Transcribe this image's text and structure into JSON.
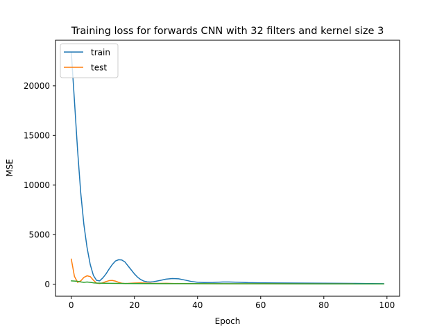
{
  "chart_data": {
    "type": "line",
    "title": "Training loss for forwards CNN with 32 filters and kernel size 3",
    "xlabel": "Epoch",
    "ylabel": "MSE",
    "xlim": [
      -5,
      104
    ],
    "ylim": [
      -1200,
      24600
    ],
    "xticks": [
      0,
      20,
      40,
      60,
      80,
      100
    ],
    "yticks": [
      0,
      5000,
      10000,
      15000,
      20000
    ],
    "grid": false,
    "legend": {
      "placement": "upper-left",
      "entries": [
        "train",
        "test"
      ]
    },
    "series": [
      {
        "name": "train",
        "color": "#1f77b4",
        "points": [
          [
            0,
            23400
          ],
          [
            1,
            18500
          ],
          [
            2,
            13500
          ],
          [
            3,
            9200
          ],
          [
            4,
            6000
          ],
          [
            5,
            3700
          ],
          [
            6,
            2000
          ],
          [
            7,
            900
          ],
          [
            8,
            400
          ],
          [
            9,
            350
          ],
          [
            10,
            650
          ],
          [
            11,
            1050
          ],
          [
            12,
            1550
          ],
          [
            13,
            2000
          ],
          [
            14,
            2350
          ],
          [
            15,
            2480
          ],
          [
            16,
            2450
          ],
          [
            17,
            2250
          ],
          [
            18,
            1850
          ],
          [
            19,
            1450
          ],
          [
            20,
            1050
          ],
          [
            21,
            720
          ],
          [
            22,
            480
          ],
          [
            23,
            320
          ],
          [
            24,
            250
          ],
          [
            25,
            230
          ],
          [
            26,
            260
          ],
          [
            28,
            380
          ],
          [
            30,
            520
          ],
          [
            32,
            580
          ],
          [
            34,
            560
          ],
          [
            36,
            430
          ],
          [
            38,
            290
          ],
          [
            40,
            210
          ],
          [
            42,
            180
          ],
          [
            45,
            190
          ],
          [
            48,
            230
          ],
          [
            50,
            235
          ],
          [
            53,
            210
          ],
          [
            56,
            170
          ],
          [
            60,
            145
          ],
          [
            65,
            140
          ],
          [
            70,
            130
          ],
          [
            75,
            120
          ],
          [
            80,
            110
          ],
          [
            85,
            100
          ],
          [
            90,
            90
          ],
          [
            95,
            80
          ],
          [
            99,
            70
          ]
        ]
      },
      {
        "name": "test",
        "color": "#ff7f0e",
        "points": [
          [
            0,
            2550
          ],
          [
            1,
            800
          ],
          [
            2,
            200
          ],
          [
            3,
            350
          ],
          [
            4,
            700
          ],
          [
            5,
            860
          ],
          [
            6,
            780
          ],
          [
            7,
            420
          ],
          [
            8,
            120
          ],
          [
            9,
            80
          ],
          [
            10,
            160
          ],
          [
            11,
            280
          ],
          [
            12,
            370
          ],
          [
            13,
            390
          ],
          [
            14,
            320
          ],
          [
            15,
            200
          ],
          [
            16,
            110
          ],
          [
            17,
            80
          ],
          [
            18,
            90
          ],
          [
            20,
            130
          ],
          [
            22,
            150
          ],
          [
            24,
            120
          ],
          [
            26,
            90
          ],
          [
            28,
            90
          ],
          [
            30,
            100
          ],
          [
            32,
            85
          ],
          [
            35,
            75
          ],
          [
            40,
            70
          ],
          [
            50,
            60
          ],
          [
            60,
            55
          ],
          [
            70,
            50
          ],
          [
            80,
            48
          ],
          [
            90,
            45
          ],
          [
            99,
            42
          ]
        ]
      },
      {
        "name": "",
        "color": "#2ca02c",
        "points": [
          [
            0,
            350
          ],
          [
            1,
            330
          ],
          [
            2,
            300
          ],
          [
            3,
            240
          ],
          [
            4,
            200
          ],
          [
            5,
            230
          ],
          [
            6,
            200
          ],
          [
            7,
            150
          ],
          [
            8,
            130
          ],
          [
            9,
            120
          ],
          [
            10,
            110
          ],
          [
            12,
            100
          ],
          [
            15,
            90
          ],
          [
            20,
            80
          ],
          [
            30,
            70
          ],
          [
            40,
            65
          ],
          [
            50,
            60
          ],
          [
            60,
            55
          ],
          [
            70,
            50
          ],
          [
            80,
            45
          ],
          [
            90,
            40
          ],
          [
            99,
            38
          ]
        ]
      }
    ]
  }
}
